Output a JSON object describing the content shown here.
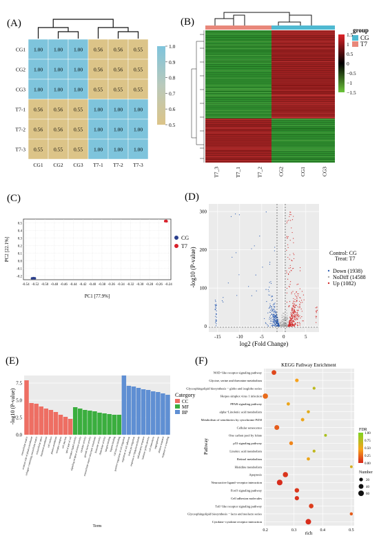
{
  "panels": {
    "A": {
      "label": "(A)"
    },
    "B": {
      "label": "(B)"
    },
    "C": {
      "label": "(C)"
    },
    "D": {
      "label": "(D)"
    },
    "E": {
      "label": "(E)"
    },
    "F": {
      "label": "(F)"
    }
  },
  "chart_data": [
    {
      "id": "A",
      "type": "heatmap",
      "rows": [
        "CG1",
        "CG2",
        "CG3",
        "T7-1",
        "T7-2",
        "T7-3"
      ],
      "cols": [
        "CG1",
        "CG2",
        "CG3",
        "T7-1",
        "T7-2",
        "T7-3"
      ],
      "values": [
        [
          "1.00",
          "1.00",
          "1.00",
          "0.56",
          "0.56",
          "0.55"
        ],
        [
          "1.00",
          "1.00",
          "1.00",
          "0.56",
          "0.56",
          "0.55"
        ],
        [
          "1.00",
          "1.00",
          "1.00",
          "0.55",
          "0.55",
          "0.55"
        ],
        [
          "0.56",
          "0.56",
          "0.55",
          "1.00",
          "1.00",
          "1.00"
        ],
        [
          "0.56",
          "0.56",
          "0.55",
          "1.00",
          "1.00",
          "1.00"
        ],
        [
          "0.55",
          "0.55",
          "0.55",
          "1.00",
          "1.00",
          "1.00"
        ]
      ],
      "colorbar_ticks": [
        "1.0",
        "0.9",
        "0.8",
        "0.7",
        "0.6",
        "0.5"
      ],
      "colorbar_range": [
        0.5,
        1.0
      ],
      "colors": {
        "high": "#7ec4dc",
        "low": "#dcc488"
      }
    },
    {
      "id": "B",
      "type": "heatmap",
      "cols": [
        "T7_3",
        "T7_1",
        "T7_2",
        "CG2",
        "CG1",
        "CG3"
      ],
      "legend_title": "group",
      "legend_entries": [
        "CG",
        "T7"
      ],
      "group_colors": {
        "CG": "#4fb9d1",
        "T7": "#e8877a"
      },
      "colorbar_ticks": [
        "1.5",
        "1",
        "0.5",
        "0",
        "−0.5",
        "−1",
        "−1.5"
      ],
      "colorbar_range": [
        -1.5,
        1.5
      ]
    },
    {
      "id": "C",
      "type": "scatter",
      "xlabel": "PC1 [77.9%]",
      "ylabel": "PC2  [22.1%]",
      "xticks": [
        "-0.54",
        "-0.52",
        "-0.50",
        "-0.48",
        "-0.46",
        "-0.44",
        "-0.42",
        "-0.40",
        "-0.38",
        "-0.36",
        "-0.34",
        "-0.32",
        "-0.30",
        "-0.28",
        "-0.26",
        "-0.24"
      ],
      "yticks": [
        "0.5",
        "0.4",
        "0.3",
        "0.2",
        "0.1",
        "0.0",
        "-0.1",
        "-0.2"
      ],
      "xlim": [
        -0.545,
        -0.235
      ],
      "ylim": [
        -0.25,
        0.55
      ],
      "series": [
        {
          "name": "CG",
          "color": "#2b3f8c",
          "x": [
            -0.527,
            -0.524,
            -0.521
          ],
          "y": [
            -0.232,
            -0.229,
            -0.231
          ]
        },
        {
          "name": "T7",
          "color": "#d8202a",
          "x": [
            -0.247,
            -0.245,
            -0.244
          ],
          "y": [
            0.523,
            0.527,
            0.521
          ]
        }
      ]
    },
    {
      "id": "D",
      "type": "scatter",
      "xlabel": "log2 (Fold Change)",
      "ylabel": "-log10 (P-value)",
      "xticks": [
        "-15",
        "-10",
        "-5",
        "0",
        "5"
      ],
      "yticks": [
        "0",
        "100",
        "200",
        "300"
      ],
      "xlim": [
        -17,
        8
      ],
      "ylim": [
        -15,
        320
      ],
      "legend_header": [
        "Control: CG",
        "Treat:   T7"
      ],
      "series": [
        {
          "name": "Down (1938)",
          "color": "#2f5fb3"
        },
        {
          "name": "NoDiff (14588",
          "color": "#a8a8a8"
        },
        {
          "name": "Up (1082)",
          "color": "#d12a2a"
        }
      ]
    },
    {
      "id": "E",
      "type": "bar",
      "ylabel": "-log10 (P-value)",
      "xlabel": "Term",
      "yticks": [
        "0.0",
        "2.5",
        "5.0",
        "7.5"
      ],
      "ylim": [
        0,
        8.6
      ],
      "legend_title": "Category",
      "series": [
        {
          "name": "CC",
          "color": "#ee6e63",
          "values": [
            7.9,
            4.6,
            4.5,
            4.1,
            3.8,
            3.6,
            3.3,
            2.9,
            2.6,
            2.3
          ]
        },
        {
          "name": "MF",
          "color": "#3aae3e",
          "values": [
            4.0,
            3.8,
            3.6,
            3.5,
            3.4,
            3.2,
            3.1,
            3.0,
            2.9,
            2.9
          ]
        },
        {
          "name": "BP",
          "color": "#5f8fd3",
          "values": [
            8.6,
            7.1,
            7.0,
            6.8,
            6.6,
            6.5,
            6.3,
            6.2,
            6.0,
            5.8
          ]
        }
      ]
    },
    {
      "id": "F",
      "type": "scatter",
      "title": "KEGG Pathway Enrichment",
      "xlabel": "rich",
      "ylabel": "Pathway",
      "xticks": [
        "0.2",
        "0.3",
        "0.4",
        "0.5"
      ],
      "xlim": [
        0.195,
        0.51
      ],
      "categories": [
        "NOD−like receptor signaling pathway",
        "Glycine, serine and threonine metabolism",
        "Glycosphingolipid biosynthesis − globo and isoglobo series",
        "Herpes simplex virus 1 infection",
        "PPAR signaling pathway",
        "alpha−Linolenic acid metabolism",
        "Metabolism of xenobiotics by cytochrome P450",
        "Cellular senescence",
        "One carbon pool by folate",
        "p53 signaling pathway",
        "Linoleic acid metabolism",
        "Retinol metabolism",
        "Histidine metabolism",
        "Apoptosis",
        "Neuroactive ligand−receptor interaction",
        "FoxO signaling pathway",
        "Cell adhesion molecules",
        "Toll−like receptor signaling pathway",
        "Glycosphingolipid biosynthesis − lacto and neolacto series",
        "Cytokine−cytokine receptor interaction"
      ],
      "rich": [
        0.23,
        0.31,
        0.37,
        0.2,
        0.28,
        0.35,
        0.33,
        0.24,
        0.41,
        0.29,
        0.37,
        0.35,
        0.5,
        0.27,
        0.25,
        0.31,
        0.31,
        0.36,
        0.5,
        0.35
      ],
      "number": [
        38,
        18,
        10,
        52,
        15,
        12,
        16,
        42,
        8,
        22,
        10,
        14,
        8,
        50,
        62,
        34,
        30,
        36,
        12,
        58
      ],
      "fdr": [
        0.12,
        0.45,
        0.72,
        0.25,
        0.5,
        0.55,
        0.5,
        0.2,
        0.8,
        0.35,
        0.7,
        0.5,
        0.6,
        0.05,
        0.02,
        0.06,
        0.04,
        0.08,
        0.2,
        0.03
      ],
      "fdr_legend_title": "FDR",
      "fdr_ticks": [
        "1.00",
        "0.75",
        "0.50",
        "0.25",
        "0.00"
      ],
      "size_legend_title": "Number",
      "size_ticks": [
        "20",
        "40",
        "60"
      ]
    }
  ],
  "terms_E": [
    "extracellular matrix",
    "external side of plasma membrane",
    "collagen−containing extracellular matrix",
    "extracellular space",
    "basement membrane",
    "cell surface",
    "plasma membrane",
    "receptor complex",
    "cell junction",
    "apical part of cell",
    "receptor ligand activity",
    "signaling receptor activator activity",
    "cytokine activity",
    "growth factor activity",
    "extracellular matrix structural constituent",
    "hormone activity",
    "chemokine activity",
    "integrin binding",
    "heparin binding",
    "calcium ion binding",
    "positive regulation of cell migration",
    "regulation of cell adhesion",
    "leukocyte migration",
    "response to lipopolysaccharide",
    "inflammatory response",
    "immune system process",
    "cell chemotaxis",
    "angiogenesis",
    "defense response",
    "response to wounding"
  ]
}
